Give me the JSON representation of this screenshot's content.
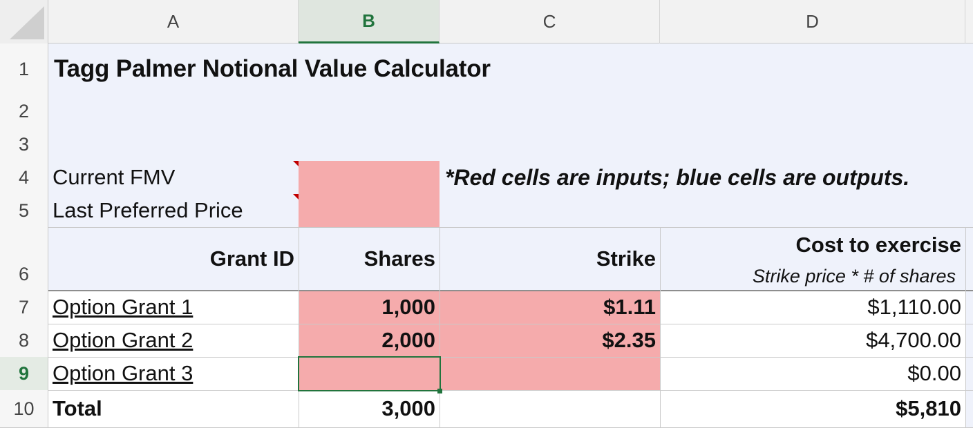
{
  "columns": [
    "A",
    "B",
    "C",
    "D"
  ],
  "selected_column": "B",
  "rows": [
    "1",
    "2",
    "3",
    "4",
    "5",
    "6",
    "7",
    "8",
    "9",
    "10"
  ],
  "selected_row": "9",
  "title": "Tagg Palmer Notional Value Calculator",
  "inputs": {
    "fmv_label": "Current FMV",
    "fmv_value": "",
    "pref_label": "Last Preferred Price",
    "pref_value": "",
    "note": "*Red cells are inputs; blue cells are outputs."
  },
  "table": {
    "headers": {
      "grant_id": "Grant ID",
      "shares": "Shares",
      "strike": "Strike",
      "cost": "Cost to exercise",
      "cost_sub": "Strike price * # of shares"
    },
    "grants": [
      {
        "name": "Option Grant 1",
        "shares": "1,000",
        "strike": "$1.11",
        "cost": "$1,110.00"
      },
      {
        "name": "Option Grant 2",
        "shares": "2,000",
        "strike": "$2.35",
        "cost": "$4,700.00"
      },
      {
        "name": "Option Grant 3",
        "shares": "",
        "strike": "",
        "cost": "$0.00"
      }
    ],
    "total": {
      "label": "Total",
      "shares": "3,000",
      "cost": "$5,810"
    }
  },
  "colors": {
    "input_red": "#f5abac",
    "output_blue": "#eff2fb",
    "selection_green": "#21743d"
  }
}
